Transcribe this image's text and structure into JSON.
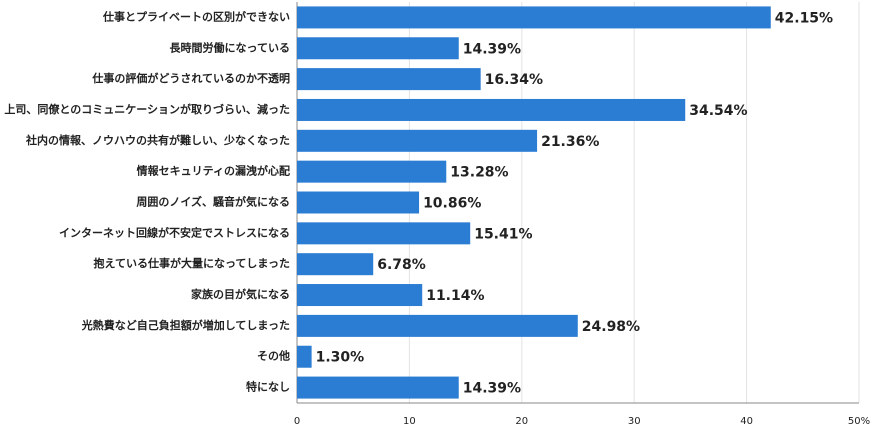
{
  "chart_data": {
    "type": "bar",
    "orientation": "horizontal",
    "categories": [
      "仕事とプライベートの区別ができない",
      "長時間労働になっている",
      "仕事の評価がどうされているのか不透明",
      "上司、同僚とのコミュニケーションが取りづらい、減った",
      "社内の情報、ノウハウの共有が難しい、少なくなった",
      "情報セキュリティの漏洩が心配",
      "周囲のノイズ、騒音が気になる",
      "インターネット回線が不安定でストレスになる",
      "抱えている仕事が大量になってしまった",
      "家族の目が気になる",
      "光熱費など自己負担額が増加してしまった",
      "その他",
      "特になし"
    ],
    "values": [
      42.15,
      14.39,
      16.34,
      34.54,
      21.36,
      13.28,
      10.86,
      15.41,
      6.78,
      11.14,
      24.98,
      1.3,
      14.39
    ],
    "value_labels": [
      "42.15%",
      "14.39%",
      "16.34%",
      "34.54%",
      "21.36%",
      "13.28%",
      "10.86%",
      "15.41%",
      "6.78%",
      "11.14%",
      "24.98%",
      "1.30%",
      "14.39%"
    ],
    "color": "#2b7cd3",
    "xlim": [
      0,
      50
    ],
    "xticks": [
      0,
      10,
      20,
      30,
      40,
      {
        "value": 50,
        "label": "50%"
      }
    ],
    "grid": true
  }
}
